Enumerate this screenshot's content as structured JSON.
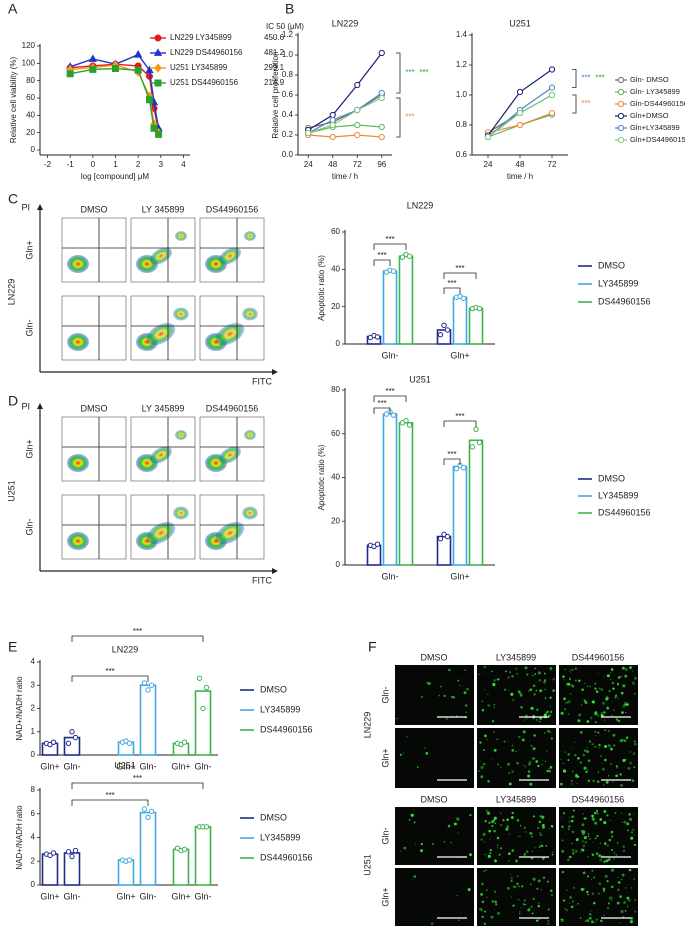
{
  "panel_labels": [
    "A",
    "B",
    "C",
    "D",
    "E",
    "F"
  ],
  "chart_data": [
    {
      "type": "scatter",
      "xlabel": "log [compound] μM",
      "ylabel": "Relative cell viability (%)",
      "legend_title": "IC 50 (μM)",
      "x": [
        -1,
        0,
        1,
        2,
        2.5,
        2.7,
        2.9
      ],
      "xlim": [
        -2.2,
        4.2
      ],
      "xticks": [
        -2,
        -1,
        0,
        1,
        2,
        3,
        4
      ],
      "ylim": [
        0,
        120
      ],
      "yticks": [
        0,
        20,
        40,
        60,
        80,
        100,
        120
      ],
      "series": [
        {
          "name": "LN229 LY345899",
          "ic50": 450.6,
          "color": "#e41a1c",
          "marker": "circle",
          "values": [
            95,
            97,
            99,
            97,
            85,
            48,
            22
          ]
        },
        {
          "name": "LN229 DS44960156",
          "ic50": 481.2,
          "color": "#2134c8",
          "marker": "triangle",
          "values": [
            96,
            105,
            99,
            110,
            92,
            55,
            25
          ]
        },
        {
          "name": "U251 LY345899",
          "ic50": 299.1,
          "color": "#f39c12",
          "marker": "diamond",
          "values": [
            93,
            95,
            98,
            90,
            62,
            30,
            20
          ]
        },
        {
          "name": "U251 DS44960156",
          "ic50": 214.9,
          "color": "#2ca02c",
          "marker": "square",
          "values": [
            88,
            93,
            94,
            92,
            58,
            25,
            18
          ]
        }
      ]
    },
    {
      "type": "line",
      "xlabel": "time / h",
      "ylabel": "Relative cell proliferation",
      "series": [
        {
          "name": "Gln- DMSO",
          "color": "#6e6e6e"
        },
        {
          "name": "Gln- LY345899",
          "color": "#5cb85c"
        },
        {
          "name": "Gln-DS44960156",
          "color": "#f0883e"
        },
        {
          "name": "Gln+DMSO",
          "color": "#1b1f6e"
        },
        {
          "name": "Gln+LY345899",
          "color": "#4f86c6"
        },
        {
          "name": "Gln+DS44960156",
          "color": "#7fc97f"
        }
      ],
      "subplots": [
        {
          "title": "LN229",
          "x": [
            24,
            48,
            72,
            96
          ],
          "xlim": [
            14,
            106
          ],
          "xticks": [
            24,
            48,
            72,
            96
          ],
          "ylim": [
            0,
            1.2
          ],
          "yticks": [
            {
              "value": 0,
              "label": "0.0"
            },
            0.2,
            0.4,
            0.6,
            0.8,
            {
              "value": 1,
              "label": "1.0"
            },
            1.2
          ],
          "values": [
            [
              0.27,
              0.33,
              0.45,
              0.6
            ],
            [
              0.22,
              0.28,
              0.3,
              0.28
            ],
            [
              0.2,
              0.18,
              0.2,
              0.18
            ],
            [
              0.25,
              0.4,
              0.7,
              1.02
            ],
            [
              0.22,
              0.35,
              0.45,
              0.62
            ],
            [
              0.22,
              0.3,
              0.45,
              0.57
            ]
          ],
          "annotations": [
            {
              "text": "***",
              "color": "#1fa3a3"
            },
            {
              "text": "***",
              "color": "#2ca02c"
            },
            {
              "text": "***",
              "color": "#f0883e"
            }
          ]
        },
        {
          "title": "U251",
          "x": [
            24,
            48,
            72
          ],
          "xlim": [
            12,
            84
          ],
          "xticks": [
            24,
            48,
            72
          ],
          "ylim": [
            0.6,
            1.4
          ],
          "yticks": [
            0.6,
            0.8,
            {
              "value": 1,
              "label": "1.0"
            },
            1.2,
            1.4
          ],
          "values": [
            [
              0.75,
              0.88,
              1.0
            ],
            [
              0.72,
              0.8,
              0.87
            ],
            [
              0.75,
              0.8,
              0.88
            ],
            [
              0.73,
              1.02,
              1.17
            ],
            [
              0.72,
              0.9,
              1.05
            ],
            [
              0.72,
              0.88,
              1.0
            ]
          ],
          "annotations": [
            {
              "text": "***",
              "color": "#4f86c6"
            },
            {
              "text": "***",
              "color": "#2ca02c"
            },
            {
              "text": "***",
              "color": "#f0883e"
            }
          ]
        }
      ]
    },
    {
      "type": "bar",
      "title": "LN229",
      "ylabel": "Apoptotic ratio (%)",
      "categories": [
        "Gln-",
        "Gln+"
      ],
      "ylim": [
        0,
        60
      ],
      "yticks": [
        0,
        20,
        40,
        60
      ],
      "series": [
        {
          "name": "DMSO",
          "color": "#1f2a8c",
          "values": [
            4,
            7.5
          ],
          "replicates": [
            [
              3.5,
              4.5,
              3.8
            ],
            [
              5,
              10,
              7.5
            ]
          ]
        },
        {
          "name": "LY345899",
          "color": "#3fa9e0",
          "values": [
            39,
            25
          ],
          "replicates": [
            [
              38.5,
              39.5,
              39
            ],
            [
              25,
              25.5,
              24.5
            ]
          ]
        },
        {
          "name": "DS44960156",
          "color": "#3cb44b",
          "values": [
            47,
            19
          ],
          "replicates": [
            [
              46.5,
              48,
              47
            ],
            [
              19,
              19.5,
              19
            ]
          ]
        }
      ],
      "annotations": [
        {
          "text": "***"
        },
        {
          "text": "***"
        },
        {
          "text": "***"
        },
        {
          "text": "***"
        }
      ]
    },
    {
      "type": "bar",
      "title": "U251",
      "ylabel": "Apoptotic ratio (%)",
      "categories": [
        "Gln-",
        "Gln+"
      ],
      "ylim": [
        0,
        80
      ],
      "yticks": [
        0,
        20,
        40,
        60,
        80
      ],
      "series": [
        {
          "name": "DMSO",
          "color": "#1f2a8c",
          "values": [
            9,
            13
          ],
          "replicates": [
            [
              9,
              8.5,
              9.5
            ],
            [
              12,
              14,
              13
            ]
          ]
        },
        {
          "name": "LY345899",
          "color": "#3fa9e0",
          "values": [
            69,
            45
          ],
          "replicates": [
            [
              69,
              70,
              68.5
            ],
            [
              44,
              45.5,
              44.5
            ]
          ]
        },
        {
          "name": "DS44960156",
          "color": "#3cb44b",
          "values": [
            65,
            57
          ],
          "replicates": [
            [
              65,
              66,
              64
            ],
            [
              54,
              62,
              56
            ]
          ]
        }
      ],
      "annotations": [
        {
          "text": "***"
        },
        {
          "text": "***"
        },
        {
          "text": "***"
        },
        {
          "text": "***"
        }
      ]
    },
    {
      "type": "bar",
      "title": "LN229",
      "ylabel": "NAD+/NADH ratio",
      "categories": [
        "Gln+",
        "Gln-",
        "Gln+",
        "Gln-",
        "Gln+",
        "Gln-"
      ],
      "ylim": [
        0,
        4
      ],
      "yticks": [
        0,
        1,
        2,
        3,
        4
      ],
      "series": [
        {
          "name": "DMSO",
          "color": "#1f2a8c",
          "values": [
            0.5,
            0.75,
            null,
            null,
            null,
            null
          ],
          "replicates": [
            [
              0.5,
              0.45,
              0.55
            ],
            [
              0.5,
              1.0,
              0.75
            ],
            null,
            null,
            null,
            null
          ]
        },
        {
          "name": "LY345899",
          "color": "#3fa9e0",
          "values": [
            null,
            null,
            0.55,
            3.0,
            null,
            null
          ],
          "replicates": [
            null,
            null,
            [
              0.55,
              0.6,
              0.5
            ],
            [
              3.1,
              2.8,
              3.0
            ],
            null,
            null
          ]
        },
        {
          "name": "DS44960156",
          "color": "#3cb44b",
          "values": [
            null,
            null,
            null,
            null,
            0.5,
            2.75
          ],
          "replicates": [
            null,
            null,
            null,
            null,
            [
              0.5,
              0.45,
              0.55
            ],
            [
              3.3,
              2.0,
              2.9
            ]
          ]
        }
      ],
      "annotations": [
        {
          "text": "***"
        },
        {
          "text": "***"
        }
      ]
    },
    {
      "type": "bar",
      "title": "U251",
      "ylabel": "NAD+/NADH ratio",
      "categories": [
        "Gln+",
        "Gln-",
        "Gln+",
        "Gln-",
        "Gln+",
        "Gln-"
      ],
      "ylim": [
        0,
        8
      ],
      "yticks": [
        0,
        2,
        4,
        6,
        8
      ],
      "series": [
        {
          "name": "DMSO",
          "color": "#1f2a8c",
          "values": [
            2.6,
            2.7,
            null,
            null,
            null,
            null
          ],
          "replicates": [
            [
              2.6,
              2.5,
              2.7
            ],
            [
              2.8,
              2.4,
              2.9
            ],
            null,
            null,
            null,
            null
          ]
        },
        {
          "name": "LY345899",
          "color": "#3fa9e0",
          "values": [
            null,
            null,
            2.1,
            6.1,
            null,
            null
          ],
          "replicates": [
            null,
            null,
            [
              2.1,
              2.0,
              2.1
            ],
            [
              6.4,
              5.7,
              6.2
            ],
            null,
            null
          ]
        },
        {
          "name": "DS44960156",
          "color": "#3cb44b",
          "values": [
            null,
            null,
            null,
            null,
            3.0,
            4.9
          ],
          "replicates": [
            null,
            null,
            null,
            null,
            [
              3.1,
              2.9,
              3.0
            ],
            [
              4.9,
              4.9,
              4.9
            ]
          ]
        }
      ],
      "annotations": [
        {
          "text": "***"
        },
        {
          "text": "***"
        }
      ]
    }
  ],
  "flow": {
    "C": {
      "cell_line": "LN229",
      "columns": [
        "DMSO",
        "LY 345899",
        "DS44960156"
      ],
      "rows": [
        "Gln+",
        "Gln-"
      ],
      "y_axis": "PI",
      "x_axis": "FITC"
    },
    "D": {
      "cell_line": "U251",
      "columns": [
        "DMSO",
        "LY 345899",
        "DS44960156"
      ],
      "rows": [
        "Gln+",
        "Gln-"
      ],
      "y_axis": "PI",
      "x_axis": "FITC"
    }
  },
  "images": {
    "groups": [
      {
        "cell_line": "LN229",
        "columns": [
          "DMSO",
          "LY345899",
          "DS44960156"
        ],
        "rows": [
          "Gln-",
          "Gln+"
        ]
      },
      {
        "cell_line": "U251",
        "columns": [
          "DMSO",
          "LY345899",
          "DS44960156"
        ],
        "rows": [
          "Gln-",
          "Gln+"
        ]
      }
    ]
  }
}
